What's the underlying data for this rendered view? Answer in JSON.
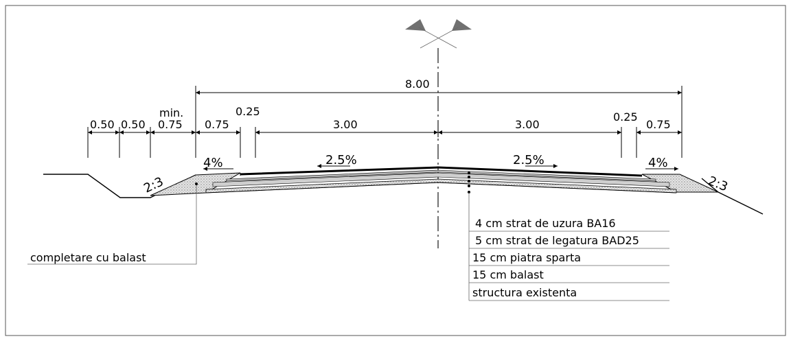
{
  "dimensions": {
    "total": "8.00",
    "left_1": "0.50",
    "left_2": "0.50",
    "min_label": "min.",
    "left_3": "0.75",
    "left_shoulder": "0.75",
    "left_strip": "0.25",
    "left_lane": "3.00",
    "right_lane": "3.00",
    "right_strip": "0.25",
    "right_shoulder": "0.75"
  },
  "slopes": {
    "left_shoulder": "4%",
    "left_lane": "2.5%",
    "right_lane": "2.5%",
    "right_shoulder": "4%",
    "left_embankment": "2:3",
    "right_embankment": "2:3"
  },
  "layers": [
    "4 cm strat de uzura BA16",
    "5 cm strat de legatura BAD25",
    "15 cm piatra sparta",
    "15 cm balast",
    "structura existenta"
  ],
  "side_note": "completare cu balast",
  "colors": {
    "line": "#000000",
    "fill_gray": "#d8d8d8",
    "symbol": "#707070"
  }
}
